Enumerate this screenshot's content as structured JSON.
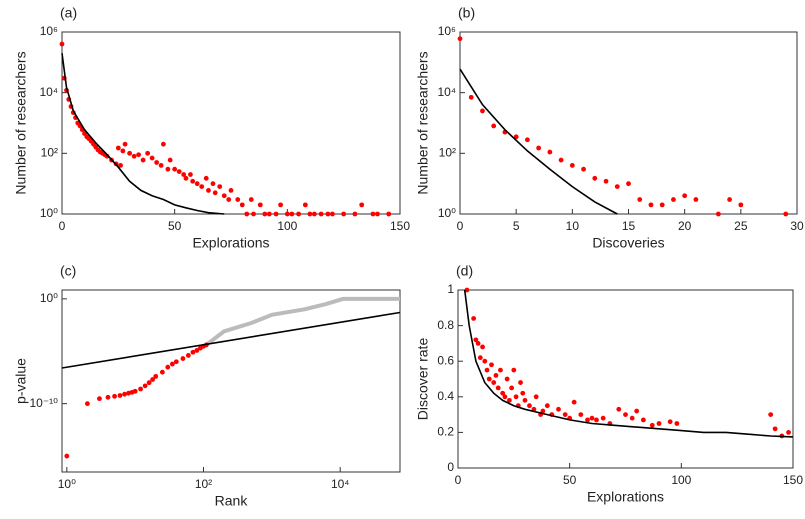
{
  "chart_data": [
    {
      "type": "scatter",
      "panel_label": "(a)",
      "xlabel": "Explorations",
      "ylabel": "Number of researchers",
      "xlim": [
        0,
        150
      ],
      "xticks": [
        0,
        50,
        100,
        150
      ],
      "ylim": [
        1,
        1000000
      ],
      "ylog": true,
      "yticks": [
        {
          "value": 1,
          "label": "10⁰"
        },
        {
          "value": 100,
          "label": "10²"
        },
        {
          "value": 10000,
          "label": "10⁴"
        },
        {
          "value": 1000000,
          "label": "10⁶"
        }
      ],
      "series": [
        {
          "color": "#ff0000",
          "mode": "markers",
          "x": [
            0,
            1,
            2,
            3,
            4,
            5,
            6,
            7,
            8,
            9,
            10,
            11,
            12,
            13,
            14,
            15,
            16,
            17,
            18,
            19,
            20,
            22,
            24,
            25,
            26,
            27,
            28,
            30,
            32,
            34,
            36,
            38,
            40,
            42,
            44,
            45,
            47,
            48,
            50,
            52,
            54,
            55,
            57,
            58,
            60,
            62,
            64,
            65,
            67,
            68,
            70,
            72,
            74,
            75,
            78,
            80,
            82,
            84,
            85,
            88,
            90,
            92,
            95,
            97,
            100,
            102,
            105,
            108,
            110,
            112,
            115,
            118,
            120,
            125,
            130,
            133,
            138,
            140,
            145
          ],
          "values": [
            400000,
            30000,
            12000,
            6000,
            3500,
            2200,
            1500,
            1000,
            800,
            600,
            450,
            350,
            300,
            250,
            200,
            160,
            130,
            110,
            100,
            90,
            80,
            60,
            45,
            150,
            40,
            120,
            200,
            100,
            80,
            90,
            60,
            100,
            70,
            50,
            40,
            200,
            30,
            60,
            30,
            25,
            20,
            15,
            20,
            12,
            10,
            8,
            15,
            6,
            10,
            5,
            8,
            4,
            3,
            6,
            3,
            2,
            1,
            3,
            1,
            2,
            1,
            1,
            1,
            2,
            1,
            1,
            1,
            2,
            1,
            1,
            1,
            1,
            1,
            1,
            1,
            2,
            1,
            1,
            1
          ]
        },
        {
          "color": "#000000",
          "mode": "line",
          "x": [
            0,
            2,
            5,
            10,
            15,
            20,
            25,
            30,
            35,
            40,
            45,
            50,
            55,
            60,
            65,
            72
          ],
          "values": [
            200000,
            15000,
            2500,
            600,
            220,
            90,
            35,
            12,
            6,
            4,
            3,
            2,
            1.6,
            1.3,
            1.1,
            1
          ]
        }
      ]
    },
    {
      "type": "scatter",
      "panel_label": "(b)",
      "xlabel": "Discoveries",
      "ylabel": "Number of researchers",
      "xlim": [
        0,
        30
      ],
      "xticks": [
        0,
        5,
        10,
        15,
        20,
        25,
        30
      ],
      "ylim": [
        1,
        1000000
      ],
      "ylog": true,
      "yticks": [
        {
          "value": 1,
          "label": "10⁰"
        },
        {
          "value": 100,
          "label": "10²"
        },
        {
          "value": 10000,
          "label": "10⁴"
        },
        {
          "value": 1000000,
          "label": "10⁶"
        }
      ],
      "series": [
        {
          "color": "#ff0000",
          "mode": "markers",
          "x": [
            0,
            1,
            2,
            3,
            4,
            5,
            6,
            7,
            8,
            9,
            10,
            11,
            12,
            13,
            14,
            15,
            16,
            17,
            18,
            19,
            20,
            21,
            23,
            24,
            25,
            29
          ],
          "values": [
            600000,
            7000,
            2500,
            800,
            500,
            350,
            280,
            150,
            110,
            60,
            40,
            30,
            15,
            12,
            8,
            10,
            3,
            2,
            2,
            3,
            4,
            3,
            1,
            3,
            2,
            1
          ]
        },
        {
          "color": "#000000",
          "mode": "line",
          "x": [
            0,
            2,
            4,
            6,
            8,
            10,
            12,
            14
          ],
          "values": [
            60000,
            4000,
            600,
            120,
            30,
            8,
            2.5,
            1
          ]
        }
      ]
    },
    {
      "type": "scatter",
      "panel_label": "(c)",
      "xlabel": "Rank",
      "ylabel": "p-value",
      "xlim": [
        0.85,
        75000
      ],
      "xlog": true,
      "xticks": [
        {
          "value": 1,
          "label": "10⁰"
        },
        {
          "value": 100,
          "label": "10²"
        },
        {
          "value": 10000,
          "label": "10⁴"
        }
      ],
      "ylim": [
        3e-17,
        7
      ],
      "ylog": true,
      "yticks": [
        {
          "value": 1e-10,
          "label": "10⁻¹⁰"
        },
        {
          "value": 1,
          "label": "10⁰"
        }
      ],
      "series": [
        {
          "color": "#bbbbbb",
          "mode": "line",
          "x": [
            110,
            200,
            500,
            1000,
            3000,
            6000,
            11000,
            75000
          ],
          "values": [
            4e-05,
            0.0008,
            0.005,
            0.03,
            0.1,
            0.3,
            1,
            1
          ]
        },
        {
          "color": "#ff0000",
          "mode": "markers",
          "x": [
            1,
            2,
            3,
            4,
            5,
            6,
            7,
            8,
            9,
            10,
            12,
            14,
            16,
            18,
            20,
            25,
            30,
            35,
            40,
            50,
            60,
            70,
            80,
            90,
            100,
            110
          ],
          "values": [
            1e-15,
            1e-10,
            3e-10,
            4e-10,
            5e-10,
            6e-10,
            8e-10,
            1e-09,
            1.2e-09,
            1.5e-09,
            2.5e-09,
            5e-09,
            1e-08,
            2e-08,
            4e-08,
            1e-07,
            3e-07,
            6e-07,
            1e-06,
            2e-06,
            4e-06,
            8e-06,
            1.2e-05,
            2e-05,
            3e-05,
            4e-05
          ]
        },
        {
          "color": "#000000",
          "mode": "line",
          "x": [
            0.85,
            75000
          ],
          "values": [
            2.5e-07,
            0.05
          ]
        }
      ]
    },
    {
      "type": "scatter",
      "panel_label": "(d)",
      "xlabel": "Explorations",
      "ylabel": "Discover rate",
      "xlim": [
        0,
        150
      ],
      "xticks": [
        0,
        50,
        100,
        150
      ],
      "ylim": [
        0,
        1
      ],
      "yticks": [
        0,
        0.2,
        0.4,
        0.6,
        0.8,
        1
      ],
      "series": [
        {
          "color": "#ff0000",
          "mode": "markers",
          "x": [
            4,
            7,
            8,
            9,
            10,
            11,
            12,
            13,
            14,
            15,
            16,
            17,
            18,
            19,
            20,
            21,
            22,
            23,
            24,
            25,
            26,
            27,
            28,
            29,
            30,
            32,
            34,
            35,
            37,
            38,
            40,
            42,
            45,
            48,
            50,
            52,
            55,
            58,
            60,
            62,
            65,
            68,
            72,
            75,
            78,
            80,
            83,
            87,
            90,
            95,
            98,
            140,
            142,
            145,
            148
          ],
          "values": [
            1,
            0.84,
            0.72,
            0.7,
            0.62,
            0.68,
            0.6,
            0.55,
            0.5,
            0.58,
            0.48,
            0.52,
            0.45,
            0.55,
            0.42,
            0.4,
            0.5,
            0.38,
            0.45,
            0.55,
            0.4,
            0.35,
            0.48,
            0.42,
            0.38,
            0.35,
            0.33,
            0.4,
            0.3,
            0.32,
            0.35,
            0.3,
            0.33,
            0.3,
            0.28,
            0.37,
            0.3,
            0.27,
            0.28,
            0.27,
            0.28,
            0.25,
            0.33,
            0.3,
            0.28,
            0.32,
            0.27,
            0.24,
            0.25,
            0.26,
            0.25,
            0.3,
            0.22,
            0.18,
            0.2
          ]
        },
        {
          "color": "#000000",
          "mode": "line",
          "x": [
            3,
            5,
            8,
            12,
            16,
            20,
            25,
            30,
            40,
            50,
            60,
            70,
            80,
            90,
            100,
            110,
            120,
            130,
            140,
            150
          ],
          "values": [
            1,
            0.8,
            0.6,
            0.48,
            0.42,
            0.38,
            0.35,
            0.33,
            0.3,
            0.27,
            0.25,
            0.24,
            0.23,
            0.22,
            0.21,
            0.2,
            0.2,
            0.19,
            0.18,
            0.175
          ]
        }
      ]
    }
  ]
}
